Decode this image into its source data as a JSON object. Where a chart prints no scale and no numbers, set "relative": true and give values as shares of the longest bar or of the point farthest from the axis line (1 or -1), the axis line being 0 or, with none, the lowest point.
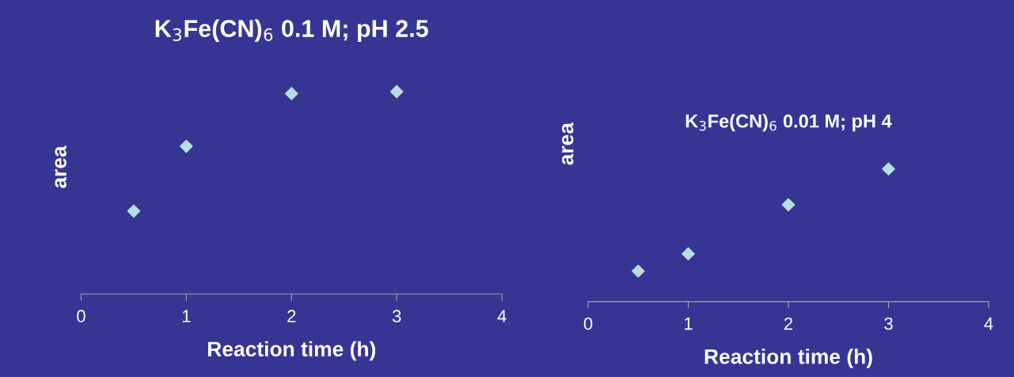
{
  "chart_data": [
    {
      "type": "scatter",
      "title": "K$_{3}$Fe(CN)$_{6}$ 0.1 M; pH 2.5",
      "xlabel": "Reaction time (h)",
      "ylabel": "area",
      "relative": true,
      "marker": "diamond",
      "grid": false,
      "legend": false,
      "x": [
        0.5,
        1,
        2,
        3
      ],
      "xlim": [
        0,
        4
      ],
      "xticks": [
        0,
        1,
        2,
        3,
        4
      ],
      "series": [
        {
          "color": "#b4e0e4",
          "values": [
            0.41,
            0.73,
            0.99,
            1
          ]
        }
      ]
    },
    {
      "type": "scatter",
      "title": "K$_{3}$Fe(CN)$_{6}$ 0.01 M; pH 4",
      "xlabel": "Reaction time (h)",
      "ylabel": "area",
      "relative": true,
      "marker": "diamond",
      "grid": false,
      "legend": false,
      "x": [
        0.5,
        1,
        2,
        3
      ],
      "xlim": [
        0,
        4
      ],
      "xticks": [
        0,
        1,
        2,
        3,
        4
      ],
      "series": [
        {
          "color": "#b4e0e4",
          "values": [
            0.23,
            0.36,
            0.73,
            1
          ]
        }
      ]
    }
  ]
}
